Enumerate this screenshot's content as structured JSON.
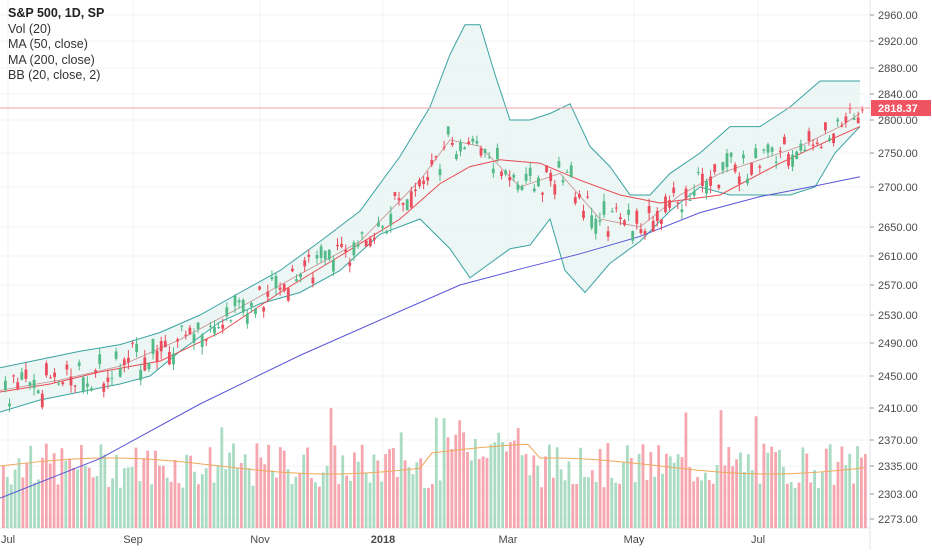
{
  "legend": {
    "title": "S&P 500, 1D, SP",
    "vol": "Vol (20)",
    "ma50": "MA (50, close)",
    "ma200": "MA (200, close)",
    "bb": "BB (20, close, 2)"
  },
  "chart_data": {
    "type": "candlestick",
    "y_ticks": [
      "2960.00",
      "2920.00",
      "2880.00",
      "2840.00",
      "2800.00",
      "2750.00",
      "2700.00",
      "2650.00",
      "2610.00",
      "2570.00",
      "2530.00",
      "2490.00",
      "2450.00",
      "2410.00",
      "2370.00",
      "2335.00",
      "2303.00",
      "2273.00"
    ],
    "x_ticks": [
      "Jul",
      "Sep",
      "Nov",
      "2018",
      "Mar",
      "May",
      "Jul"
    ],
    "last_price": "2818.37",
    "ylim": [
      2273,
      2960
    ],
    "grid": true,
    "colors": {
      "up": "#53b987",
      "down": "#eb4d5c",
      "vol_up": "#a9dcc3",
      "vol_down": "#f5a6ae",
      "ma50": "#e8494f",
      "ma200": "#5b55d6",
      "bb": "#3aa3a0",
      "bb_fill": "#e6f4f3",
      "price_line": "#f2a3a8",
      "vol_ma": "#f0a95b"
    },
    "series": [
      {
        "name": "MA (50, close)",
        "points": [
          [
            0,
            2430
          ],
          [
            50,
            2440
          ],
          [
            100,
            2455
          ],
          [
            160,
            2468
          ],
          [
            220,
            2505
          ],
          [
            280,
            2560
          ],
          [
            340,
            2610
          ],
          [
            400,
            2660
          ],
          [
            440,
            2705
          ],
          [
            470,
            2730
          ],
          [
            500,
            2740
          ],
          [
            540,
            2735
          ],
          [
            580,
            2710
          ],
          [
            620,
            2690
          ],
          [
            660,
            2680
          ],
          [
            720,
            2690
          ],
          [
            780,
            2735
          ],
          [
            830,
            2770
          ],
          [
            860,
            2790
          ]
        ]
      },
      {
        "name": "MA (200, close)",
        "points": [
          [
            0,
            2298
          ],
          [
            100,
            2345
          ],
          [
            200,
            2415
          ],
          [
            300,
            2475
          ],
          [
            400,
            2535
          ],
          [
            460,
            2570
          ],
          [
            520,
            2592
          ],
          [
            580,
            2613
          ],
          [
            640,
            2637
          ],
          [
            700,
            2668
          ],
          [
            760,
            2688
          ],
          [
            810,
            2700
          ],
          [
            860,
            2715
          ]
        ]
      },
      {
        "name": "BB (20, close, 2)",
        "upper": [
          [
            0,
            2460
          ],
          [
            40,
            2470
          ],
          [
            80,
            2480
          ],
          [
            120,
            2488
          ],
          [
            160,
            2505
          ],
          [
            200,
            2530
          ],
          [
            240,
            2560
          ],
          [
            280,
            2590
          ],
          [
            320,
            2630
          ],
          [
            360,
            2670
          ],
          [
            400,
            2745
          ],
          [
            430,
            2820
          ],
          [
            450,
            2900
          ],
          [
            465,
            2945
          ],
          [
            480,
            2945
          ],
          [
            495,
            2870
          ],
          [
            510,
            2800
          ],
          [
            530,
            2800
          ],
          [
            550,
            2810
          ],
          [
            570,
            2825
          ],
          [
            590,
            2760
          ],
          [
            610,
            2730
          ],
          [
            630,
            2690
          ],
          [
            650,
            2690
          ],
          [
            670,
            2720
          ],
          [
            700,
            2750
          ],
          [
            730,
            2790
          ],
          [
            760,
            2790
          ],
          [
            790,
            2820
          ],
          [
            820,
            2860
          ],
          [
            845,
            2860
          ],
          [
            860,
            2860
          ]
        ],
        "lower": [
          [
            0,
            2405
          ],
          [
            40,
            2420
          ],
          [
            80,
            2430
          ],
          [
            120,
            2440
          ],
          [
            150,
            2450
          ],
          [
            180,
            2480
          ],
          [
            220,
            2520
          ],
          [
            260,
            2545
          ],
          [
            300,
            2560
          ],
          [
            340,
            2590
          ],
          [
            380,
            2640
          ],
          [
            420,
            2660
          ],
          [
            450,
            2620
          ],
          [
            470,
            2580
          ],
          [
            490,
            2600
          ],
          [
            510,
            2620
          ],
          [
            530,
            2625
          ],
          [
            550,
            2660
          ],
          [
            565,
            2590
          ],
          [
            585,
            2560
          ],
          [
            610,
            2600
          ],
          [
            640,
            2630
          ],
          [
            670,
            2670
          ],
          [
            700,
            2700
          ],
          [
            730,
            2690
          ],
          [
            760,
            2690
          ],
          [
            790,
            2690
          ],
          [
            815,
            2700
          ],
          [
            835,
            2750
          ],
          [
            860,
            2790
          ]
        ],
        "middle": [
          [
            0,
            2432
          ],
          [
            60,
            2445
          ],
          [
            120,
            2462
          ],
          [
            180,
            2495
          ],
          [
            240,
            2540
          ],
          [
            300,
            2585
          ],
          [
            360,
            2630
          ],
          [
            420,
            2710
          ],
          [
            450,
            2770
          ],
          [
            480,
            2760
          ],
          [
            520,
            2700
          ],
          [
            560,
            2720
          ],
          [
            600,
            2660
          ],
          [
            640,
            2650
          ],
          [
            680,
            2690
          ],
          [
            720,
            2720
          ],
          [
            760,
            2740
          ],
          [
            800,
            2760
          ],
          [
            840,
            2790
          ],
          [
            860,
            2810
          ]
        ]
      }
    ]
  }
}
